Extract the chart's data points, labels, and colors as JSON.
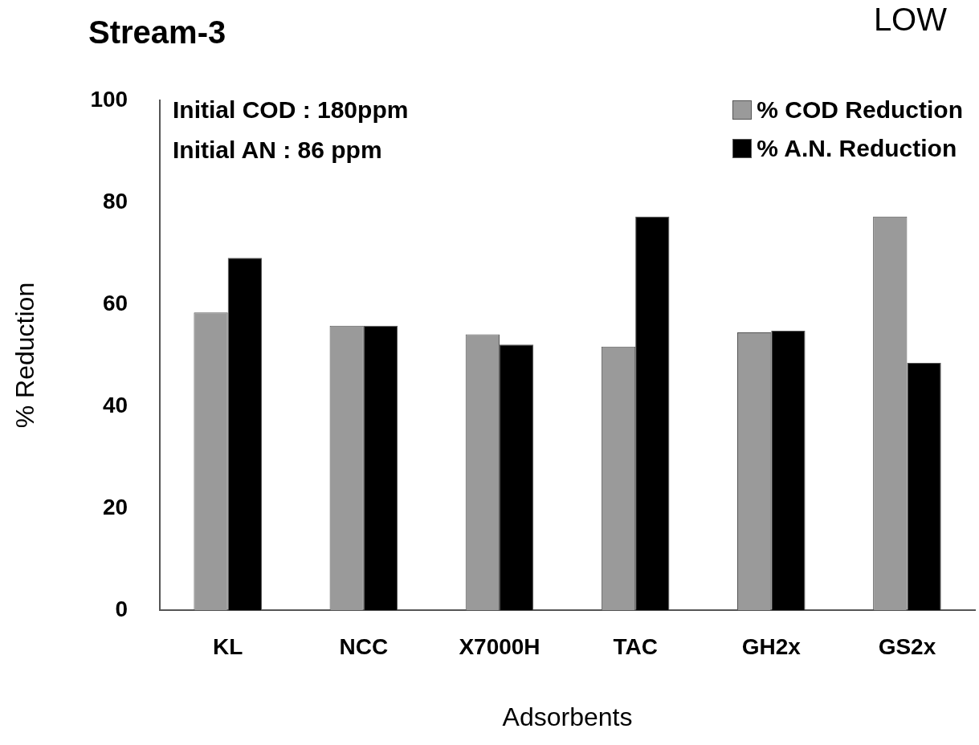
{
  "chart_data": {
    "type": "bar",
    "title": "Stream-3",
    "xlabel": "Adsorbents",
    "ylabel": "% Reduction",
    "categories": [
      "KL",
      "NCC",
      "X7000H",
      "TAC",
      "GH2x",
      "GS2x"
    ],
    "series": [
      {
        "name": "% COD Reduction",
        "color": "#9a9a9a",
        "values": [
          58.4,
          55.8,
          54.1,
          51.7,
          54.5,
          77.2
        ]
      },
      {
        "name": "% A.N. Reduction",
        "color": "#000000",
        "values": [
          69.1,
          55.8,
          52.1,
          77.2,
          54.8,
          48.5
        ]
      }
    ],
    "ylim": [
      0,
      100
    ],
    "yticks": [
      0,
      20,
      40,
      60,
      80,
      100
    ],
    "grid": false,
    "legend": "top right",
    "annotations": [
      "Initial COD : 180ppm",
      "Initial AN : 86 ppm",
      "LOW"
    ]
  }
}
